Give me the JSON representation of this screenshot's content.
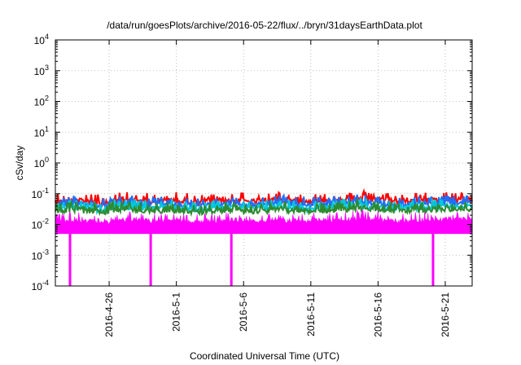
{
  "chart_data": {
    "type": "line",
    "title": "/data/run/goesPlots/archive/2016-05-22/flux/../bryn/31daysEarthData.plot",
    "xlabel": "Coordinated Universal Time (UTC)",
    "ylabel": "cSv/day",
    "yscale": "log",
    "ylim": [
      0.0001,
      10000
    ],
    "xlim": [
      "2016-04-22",
      "2016-05-23"
    ],
    "y_ticks": [
      {
        "value": 0.0001,
        "base": "10",
        "exp": "-4"
      },
      {
        "value": 0.001,
        "base": "10",
        "exp": "-3"
      },
      {
        "value": 0.01,
        "base": "10",
        "exp": "-2"
      },
      {
        "value": 0.1,
        "base": "10",
        "exp": "-1"
      },
      {
        "value": 1,
        "base": "10",
        "exp": "0"
      },
      {
        "value": 10,
        "base": "10",
        "exp": "1"
      },
      {
        "value": 100,
        "base": "10",
        "exp": "2"
      },
      {
        "value": 1000,
        "base": "10",
        "exp": "3"
      },
      {
        "value": 10000,
        "base": "10",
        "exp": "4"
      }
    ],
    "x_ticks": [
      "2016-4-26",
      "2016-5-1",
      "2016-5-6",
      "2016-5-11",
      "2016-5-16",
      "2016-5-21"
    ],
    "grid": true,
    "series": [
      {
        "color": "#ff0000",
        "values": [
          0.065,
          0.07,
          0.068,
          0.06,
          0.07,
          0.072,
          0.068,
          0.066,
          0.07,
          0.065,
          0.06,
          0.066,
          0.07,
          0.072,
          0.066,
          0.068,
          0.074,
          0.07,
          0.066,
          0.068,
          0.07,
          0.072,
          0.078,
          0.074,
          0.07,
          0.066,
          0.068,
          0.07,
          0.072,
          0.074,
          0.076
        ]
      },
      {
        "color": "#1e6fff",
        "values": [
          0.05,
          0.055,
          0.052,
          0.046,
          0.054,
          0.056,
          0.052,
          0.05,
          0.054,
          0.05,
          0.046,
          0.05,
          0.054,
          0.056,
          0.05,
          0.052,
          0.058,
          0.054,
          0.05,
          0.052,
          0.054,
          0.056,
          0.062,
          0.058,
          0.054,
          0.05,
          0.052,
          0.054,
          0.056,
          0.058,
          0.06
        ]
      },
      {
        "color": "#00c8d8",
        "values": [
          0.038,
          0.042,
          0.04,
          0.035,
          0.041,
          0.043,
          0.04,
          0.038,
          0.041,
          0.038,
          0.035,
          0.038,
          0.041,
          0.043,
          0.038,
          0.04,
          0.044,
          0.041,
          0.038,
          0.04,
          0.041,
          0.043,
          0.048,
          0.044,
          0.041,
          0.038,
          0.04,
          0.041,
          0.043,
          0.044,
          0.046
        ]
      },
      {
        "color": "#2e8b2e",
        "values": [
          0.032,
          0.035,
          0.033,
          0.03,
          0.034,
          0.036,
          0.033,
          0.032,
          0.034,
          0.032,
          0.03,
          0.032,
          0.034,
          0.036,
          0.032,
          0.033,
          0.037,
          0.034,
          0.032,
          0.033,
          0.034,
          0.036,
          0.04,
          0.037,
          0.034,
          0.032,
          0.033,
          0.034,
          0.036,
          0.037,
          0.038
        ]
      },
      {
        "color": "#ff00ff",
        "values": [
          0.015,
          0.016,
          0.015,
          0.014,
          0.016,
          0.017,
          0.016,
          0.015,
          0.016,
          0.015,
          0.014,
          0.015,
          0.016,
          0.017,
          0.015,
          0.016,
          0.018,
          0.016,
          0.015,
          0.016,
          0.016,
          0.017,
          0.019,
          0.018,
          0.016,
          0.015,
          0.016,
          0.016,
          0.017,
          0.018,
          0.018
        ],
        "floor": 0.005,
        "dropouts": [
          "2016-04-23",
          "2016-04-29",
          "2016-05-05",
          "2016-05-20"
        ]
      }
    ]
  }
}
